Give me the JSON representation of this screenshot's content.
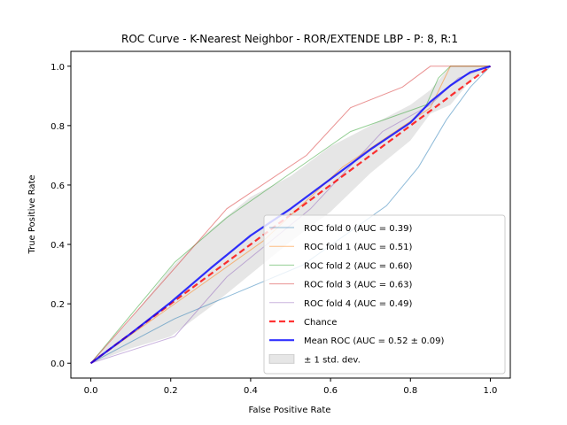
{
  "chart_data": {
    "type": "line",
    "title": "ROC Curve - K-Nearest Neighbor - ROR/EXTENDE LBP - P: 8, R:1",
    "xlabel": "False Positive Rate",
    "ylabel": "True Positive Rate",
    "xlim": [
      -0.05,
      1.05
    ],
    "ylim": [
      -0.05,
      1.05
    ],
    "xticks": [
      "0.0",
      "0.2",
      "0.4",
      "0.6",
      "0.8",
      "1.0"
    ],
    "yticks": [
      "0.0",
      "0.2",
      "0.4",
      "0.6",
      "0.8",
      "1.0"
    ],
    "grid": false,
    "legend_position": "lower right",
    "series": [
      {
        "name": "ROC fold 0 (AUC = 0.39)",
        "color": "#1f77b4",
        "x": [
          0,
          0.21,
          0.53,
          0.74,
          0.82,
          0.89,
          0.95,
          1.0
        ],
        "y": [
          0,
          0.15,
          0.33,
          0.53,
          0.66,
          0.82,
          0.93,
          1.0
        ]
      },
      {
        "name": "ROC fold 1 (AUC = 0.51)",
        "color": "#ff7f0e",
        "x": [
          0,
          0.21,
          0.43,
          0.63,
          0.85,
          0.9,
          1.0
        ],
        "y": [
          0,
          0.2,
          0.41,
          0.66,
          0.86,
          1.0,
          1.0
        ]
      },
      {
        "name": "ROC fold 2 (AUC = 0.60)",
        "color": "#2ca02c",
        "x": [
          0,
          0.21,
          0.34,
          0.65,
          0.84,
          0.87,
          0.9,
          1.0
        ],
        "y": [
          0,
          0.34,
          0.49,
          0.78,
          0.87,
          0.96,
          1.0,
          1.0
        ]
      },
      {
        "name": "ROC fold 3 (AUC = 0.63)",
        "color": "#d62728",
        "x": [
          0,
          0.21,
          0.34,
          0.54,
          0.65,
          0.78,
          0.85,
          1.0
        ],
        "y": [
          0,
          0.32,
          0.52,
          0.7,
          0.86,
          0.93,
          1.0,
          1.0
        ]
      },
      {
        "name": "ROC fold 4 (AUC = 0.49)",
        "color": "#9467bd",
        "x": [
          0,
          0.21,
          0.34,
          0.55,
          0.73,
          0.85,
          0.92,
          1.0
        ],
        "y": [
          0,
          0.09,
          0.29,
          0.52,
          0.78,
          0.87,
          0.96,
          1.0
        ]
      }
    ],
    "chance": {
      "name": "Chance",
      "color": "#ff0000",
      "x": [
        0,
        1
      ],
      "y": [
        0,
        1
      ]
    },
    "mean": {
      "name": "Mean ROC (AUC = 0.52 ± 0.09)",
      "color": "#0000ff",
      "x": [
        0,
        0.1,
        0.2,
        0.3,
        0.4,
        0.5,
        0.6,
        0.7,
        0.8,
        0.85,
        0.9,
        0.95,
        1.0
      ],
      "y": [
        0,
        0.1,
        0.205,
        0.32,
        0.43,
        0.52,
        0.62,
        0.72,
        0.81,
        0.88,
        0.935,
        0.98,
        1.0
      ]
    },
    "std_band": {
      "name": "± 1 std. dev.",
      "color": "#808080",
      "x": [
        0,
        0.1,
        0.2,
        0.3,
        0.4,
        0.5,
        0.6,
        0.7,
        0.8,
        0.85,
        0.9,
        0.95,
        1.0
      ],
      "upper": [
        0,
        0.15,
        0.32,
        0.45,
        0.56,
        0.63,
        0.73,
        0.8,
        0.87,
        0.92,
        1.0,
        1.0,
        1.0
      ],
      "lower": [
        0,
        0.05,
        0.09,
        0.19,
        0.3,
        0.41,
        0.51,
        0.64,
        0.75,
        0.84,
        0.87,
        0.95,
        1.0
      ]
    }
  }
}
